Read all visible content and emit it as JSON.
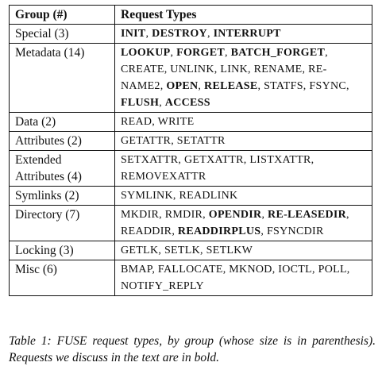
{
  "table": {
    "headers": [
      "Group (#)",
      "Request Types"
    ],
    "rows": [
      {
        "group": "Special (3)",
        "requests": [
          {
            "t": "INIT",
            "b": true
          },
          {
            "t": ", ",
            "b": false
          },
          {
            "t": "DESTROY",
            "b": true
          },
          {
            "t": ", ",
            "b": false
          },
          {
            "t": "INTERRUPT",
            "b": true
          }
        ]
      },
      {
        "group": "Metadata (14)",
        "requests": [
          {
            "t": "LOOKUP",
            "b": true
          },
          {
            "t": ", ",
            "b": false
          },
          {
            "t": "FORGET",
            "b": true
          },
          {
            "t": ", ",
            "b": false
          },
          {
            "t": "BATCH_FORGET",
            "b": true
          },
          {
            "t": ", CREATE, UNLINK, LINK, RENAME, RE-NAME2, ",
            "b": false
          },
          {
            "t": "OPEN",
            "b": true
          },
          {
            "t": ", ",
            "b": false
          },
          {
            "t": "RELEASE",
            "b": true
          },
          {
            "t": ", STATFS, FSYNC, ",
            "b": false
          },
          {
            "t": "FLUSH",
            "b": true
          },
          {
            "t": ", ",
            "b": false
          },
          {
            "t": "ACCESS",
            "b": true
          }
        ]
      },
      {
        "group": "Data (2)",
        "requests": [
          {
            "t": "READ, WRITE",
            "b": false
          }
        ]
      },
      {
        "group": "Attributes (2)",
        "requests": [
          {
            "t": "GETATTR, SETATTR",
            "b": false
          }
        ]
      },
      {
        "group": "Extended Attributes (4)",
        "requests": [
          {
            "t": "SETXATTR, GETXATTR, LISTXATTR, REMOVEXATTR",
            "b": false
          }
        ]
      },
      {
        "group": "Symlinks (2)",
        "requests": [
          {
            "t": "SYMLINK, READLINK",
            "b": false
          }
        ]
      },
      {
        "group": "Directory (7)",
        "requests": [
          {
            "t": "MKDIR, RMDIR, ",
            "b": false
          },
          {
            "t": "OPENDIR",
            "b": true
          },
          {
            "t": ", ",
            "b": false
          },
          {
            "t": "RE-LEASEDIR",
            "b": true
          },
          {
            "t": ", READDIR, ",
            "b": false
          },
          {
            "t": "READDIRPLUS",
            "b": true
          },
          {
            "t": ", FSYNCDIR",
            "b": false
          }
        ]
      },
      {
        "group": "Locking (3)",
        "requests": [
          {
            "t": "GETLK, SETLK, SETLKW",
            "b": false
          }
        ]
      },
      {
        "group": "Misc (6)",
        "requests": [
          {
            "t": "BMAP, FALLOCATE, MKNOD, IOCTL, POLL, NOTIFY_REPLY",
            "b": false
          }
        ]
      }
    ]
  },
  "caption": "Table 1: FUSE request types, by group (whose size is in parenthesis). Requests we discuss in the text are in bold."
}
